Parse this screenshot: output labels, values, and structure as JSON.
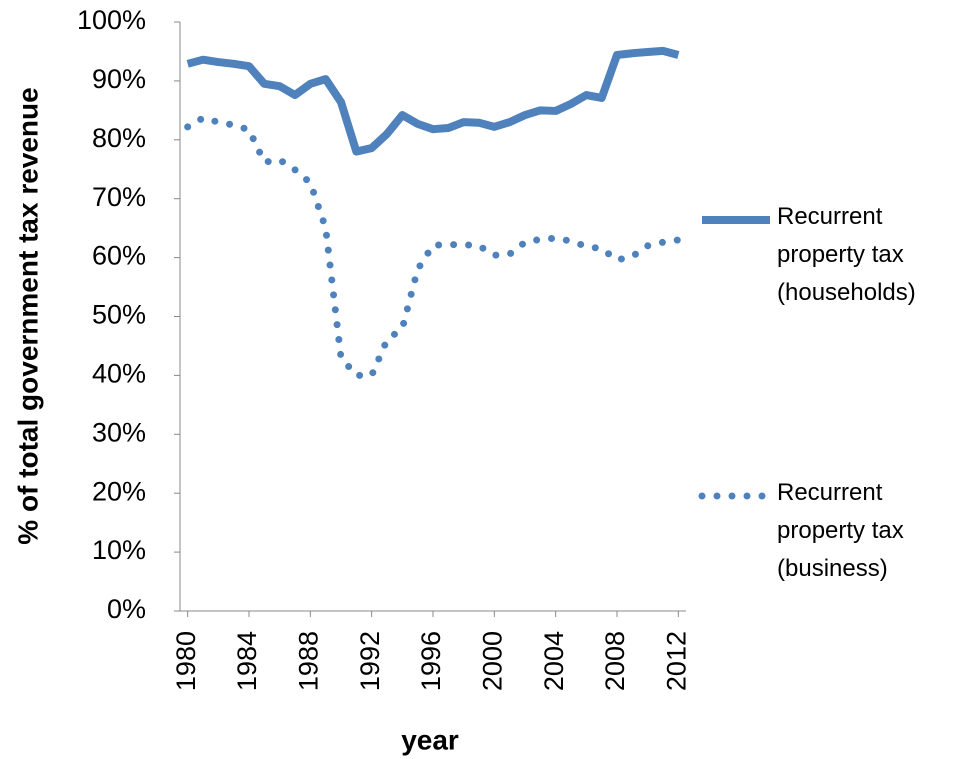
{
  "chart_data": {
    "type": "line",
    "y_label": "% of total government tax revenue",
    "x_label": "year",
    "x": [
      1980,
      1981,
      1982,
      1983,
      1984,
      1985,
      1986,
      1987,
      1988,
      1989,
      1990,
      1991,
      1992,
      1993,
      1994,
      1995,
      1996,
      1997,
      1998,
      1999,
      2000,
      2001,
      2002,
      2003,
      2004,
      2005,
      2006,
      2007,
      2008,
      2009,
      2010,
      2011,
      2012
    ],
    "series": [
      {
        "name": "Recurrent property tax (households)",
        "color": "#4f81bd",
        "style": "solid",
        "values": [
          92.9,
          93.6,
          93.2,
          92.9,
          92.5,
          89.5,
          89.1,
          87.6,
          89.5,
          90.3,
          86.4,
          78.0,
          78.6,
          81.0,
          84.2,
          82.7,
          81.8,
          82.0,
          83.0,
          82.9,
          82.2,
          83.0,
          84.2,
          85.0,
          84.9,
          86.1,
          87.6,
          87.1,
          94.4,
          94.7,
          94.9,
          95.1,
          94.4
        ]
      },
      {
        "name": "Recurrent property tax (business)",
        "color": "#4f81bd",
        "style": "dotted",
        "values": [
          82.2,
          83.7,
          83.0,
          82.5,
          81.7,
          76.2,
          76.6,
          74.9,
          72.7,
          65.0,
          43.0,
          40.0,
          40.0,
          46.0,
          48.0,
          58.0,
          62.1,
          62.2,
          62.2,
          62.0,
          60.4,
          60.6,
          62.6,
          63.1,
          63.3,
          62.8,
          61.9,
          61.5,
          59.6,
          60.2,
          62.0,
          62.6,
          63.0
        ]
      }
    ],
    "xlim": [
      1979.5,
      2012.5
    ],
    "xticks": [
      1980,
      1984,
      1988,
      1992,
      1996,
      2000,
      2004,
      2008,
      2012
    ],
    "ylim": [
      0,
      100
    ],
    "yticks": [
      {
        "value": 0,
        "label": "0%"
      },
      {
        "value": 10,
        "label": "10%"
      },
      {
        "value": 20,
        "label": "20%"
      },
      {
        "value": 30,
        "label": "30%"
      },
      {
        "value": 40,
        "label": "40%"
      },
      {
        "value": 50,
        "label": "50%"
      },
      {
        "value": 60,
        "label": "60%"
      },
      {
        "value": 70,
        "label": "70%"
      },
      {
        "value": 80,
        "label": "80%"
      },
      {
        "value": 90,
        "label": "90%"
      },
      {
        "value": 100,
        "label": "100%"
      }
    ],
    "grid": false,
    "legend": "right"
  }
}
